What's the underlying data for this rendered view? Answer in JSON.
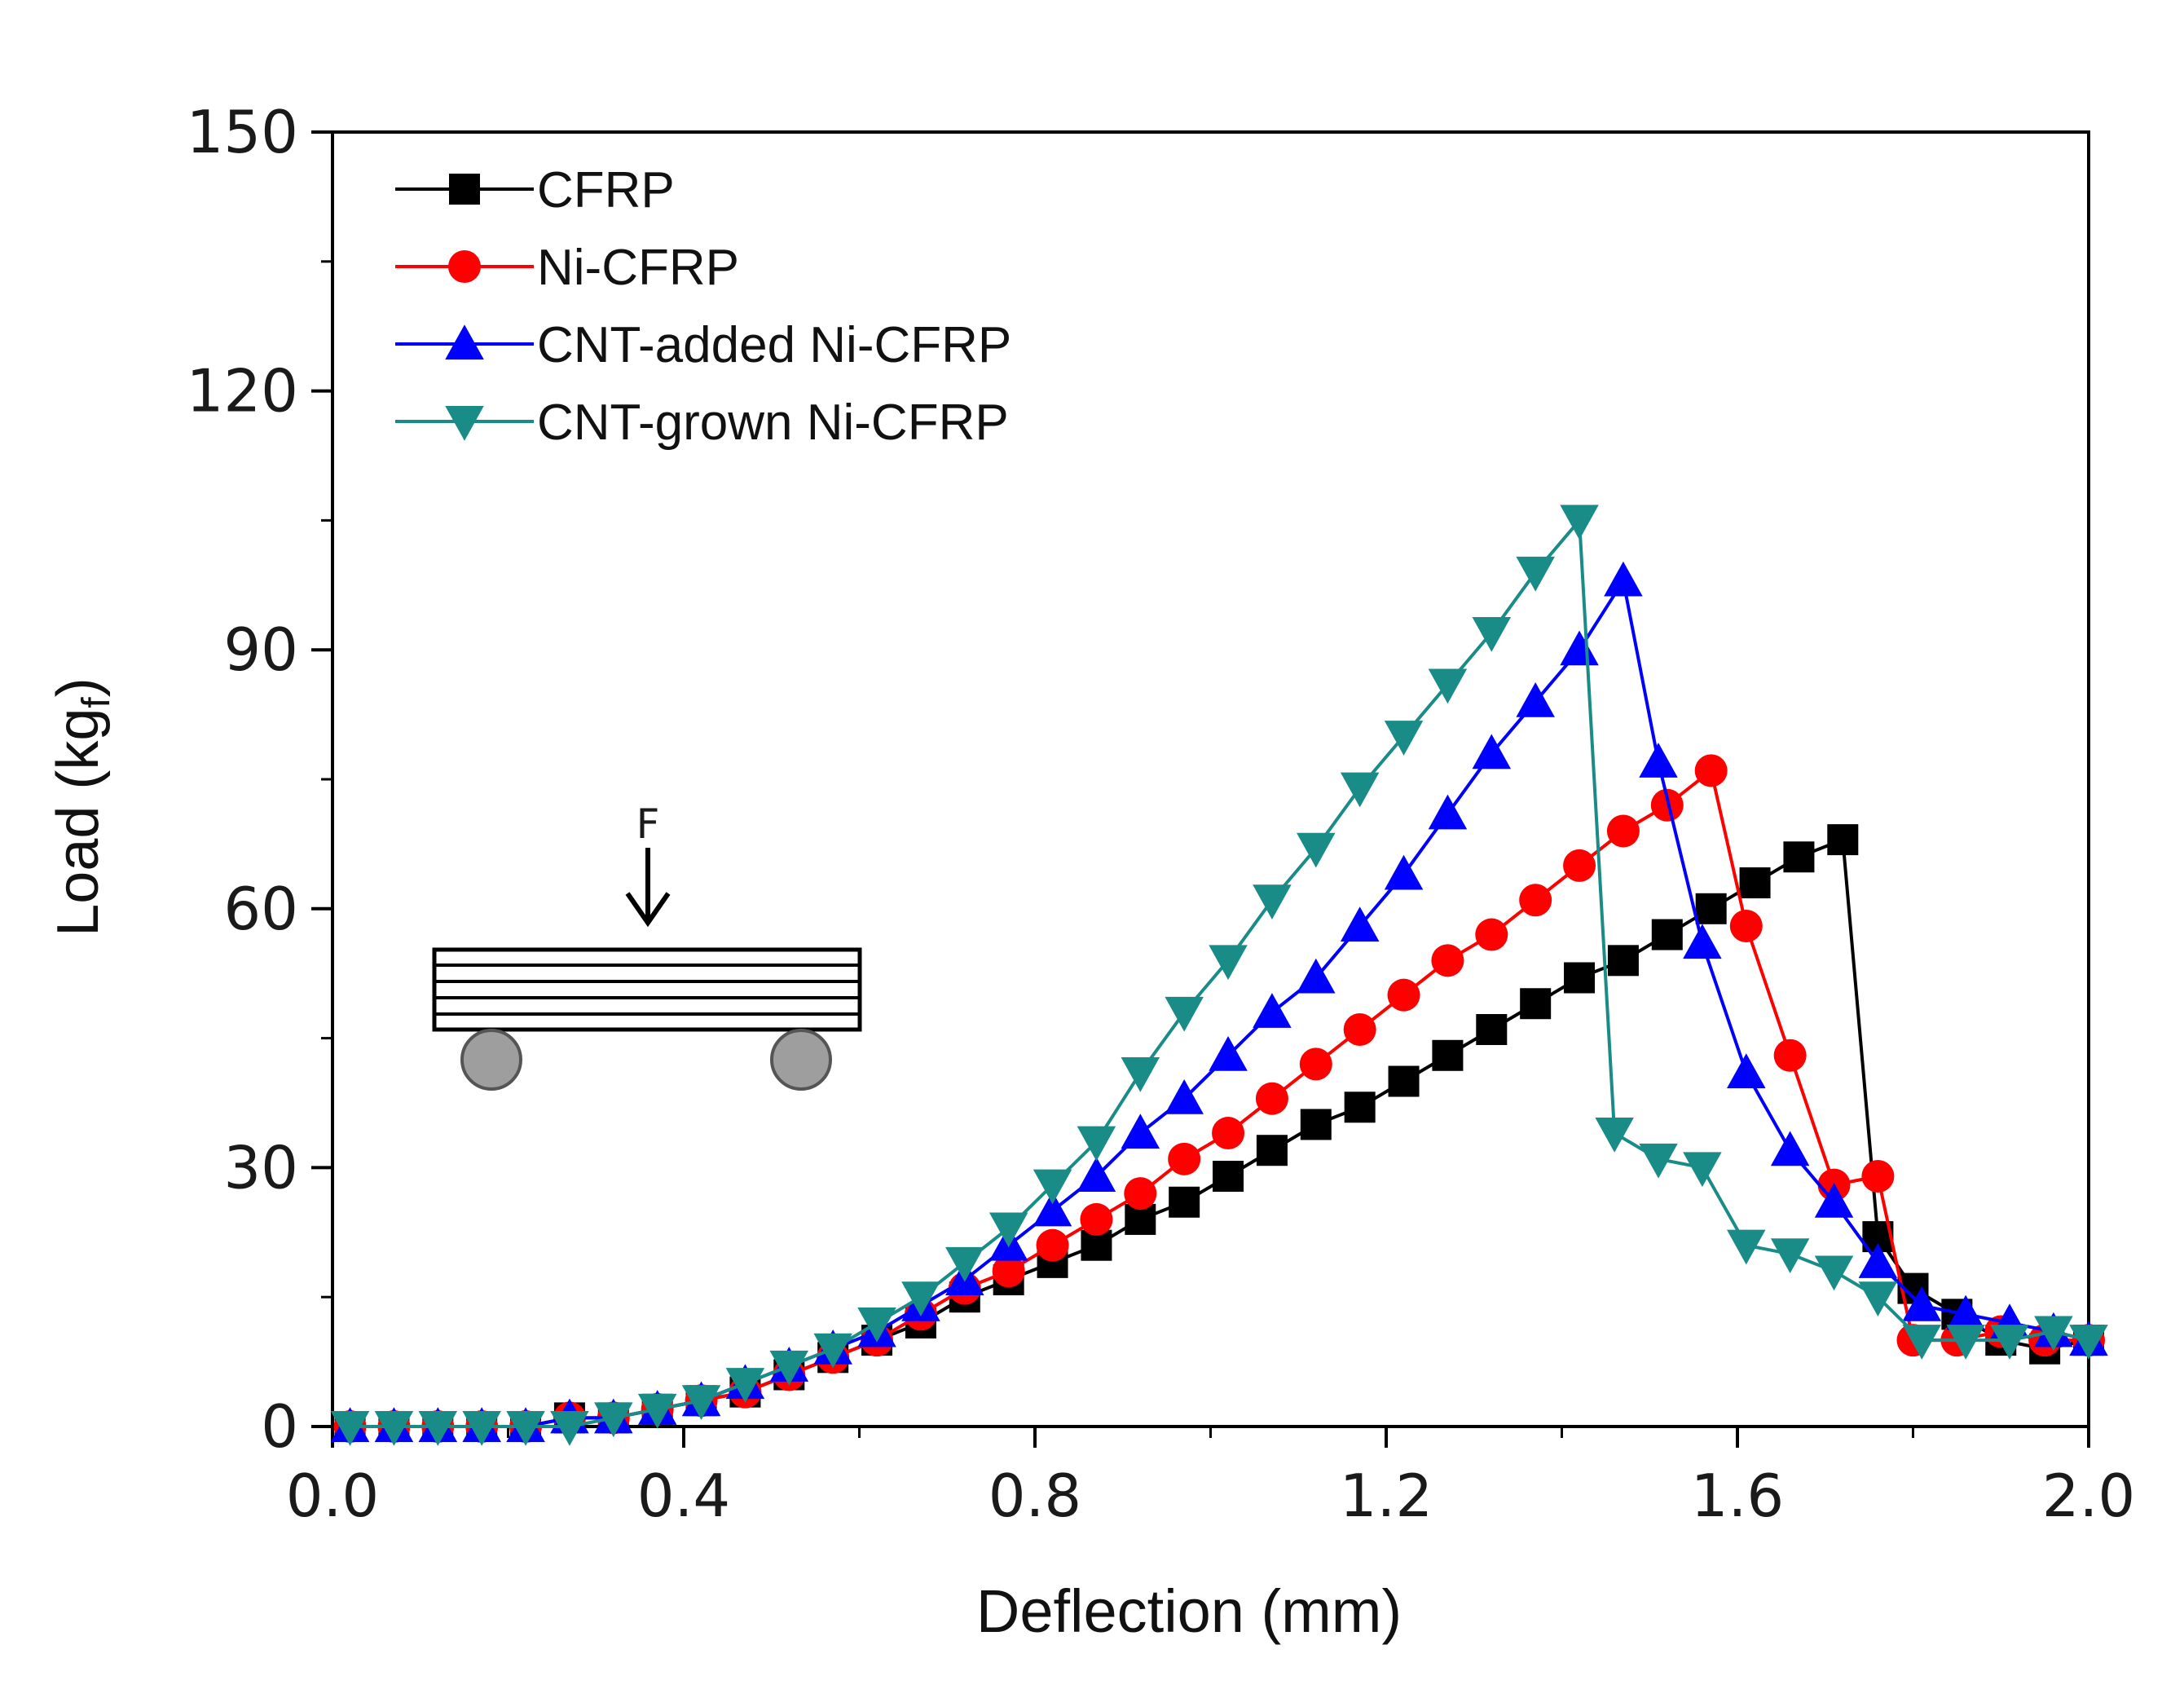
{
  "chart_data": {
    "type": "line",
    "title": "",
    "xlabel": "Deflection (mm)",
    "ylabel": "Load (kg",
    "ylabel_sub": "f",
    "ylabel_close": ")",
    "xlim": [
      0.0,
      2.0
    ],
    "ylim": [
      0,
      150
    ],
    "x_ticks": [
      "0.0",
      "0.4",
      "0.8",
      "1.2",
      "1.6",
      "2.0"
    ],
    "y_ticks": [
      "0",
      "30",
      "60",
      "90",
      "120",
      "150"
    ],
    "grid": false,
    "legend_position": "top-left",
    "series": [
      {
        "name": "CFRP",
        "color": "#000000",
        "marker": "square",
        "x": [
          0.02,
          0.07,
          0.12,
          0.17,
          0.22,
          0.27,
          0.32,
          0.37,
          0.42,
          0.47,
          0.52,
          0.57,
          0.62,
          0.67,
          0.72,
          0.77,
          0.82,
          0.87,
          0.92,
          0.97,
          1.02,
          1.07,
          1.12,
          1.17,
          1.22,
          1.27,
          1.32,
          1.37,
          1.42,
          1.47,
          1.52,
          1.57,
          1.62,
          1.67,
          1.72,
          1.76,
          1.8,
          1.85,
          1.9,
          1.95,
          2.0
        ],
        "y": [
          0,
          0,
          0,
          0,
          0,
          1,
          1,
          2,
          3,
          4,
          6,
          8,
          10,
          12,
          15,
          17,
          19,
          21,
          24,
          26,
          29,
          32,
          35,
          37,
          40,
          43,
          46,
          49,
          52,
          54,
          57,
          60,
          63,
          66,
          68,
          22,
          16,
          13,
          10,
          9,
          10
        ]
      },
      {
        "name": "Ni-CFRP",
        "color": "#ff0000",
        "marker": "circle",
        "x": [
          0.02,
          0.07,
          0.12,
          0.17,
          0.22,
          0.27,
          0.32,
          0.37,
          0.42,
          0.47,
          0.52,
          0.57,
          0.62,
          0.67,
          0.72,
          0.77,
          0.82,
          0.87,
          0.92,
          0.97,
          1.02,
          1.07,
          1.12,
          1.17,
          1.22,
          1.27,
          1.32,
          1.37,
          1.42,
          1.47,
          1.52,
          1.57,
          1.61,
          1.66,
          1.71,
          1.76,
          1.8,
          1.85,
          1.9,
          1.95,
          2.0
        ],
        "y": [
          0,
          0,
          0,
          0,
          0,
          1,
          1,
          2,
          3,
          4,
          6,
          8,
          10,
          13,
          16,
          18,
          21,
          24,
          27,
          31,
          34,
          38,
          42,
          46,
          50,
          54,
          57,
          61,
          65,
          69,
          72,
          76,
          58,
          43,
          28,
          29,
          10,
          10,
          11,
          10,
          10
        ]
      },
      {
        "name": "CNT-added Ni-CFRP",
        "color": "#0000ff",
        "marker": "triangle-up",
        "x": [
          0.02,
          0.07,
          0.12,
          0.17,
          0.22,
          0.27,
          0.32,
          0.37,
          0.42,
          0.47,
          0.52,
          0.57,
          0.62,
          0.67,
          0.72,
          0.77,
          0.82,
          0.87,
          0.92,
          0.97,
          1.02,
          1.07,
          1.12,
          1.17,
          1.22,
          1.27,
          1.32,
          1.37,
          1.42,
          1.47,
          1.51,
          1.56,
          1.61,
          1.66,
          1.71,
          1.76,
          1.81,
          1.86,
          1.91,
          1.96,
          2.0
        ],
        "y": [
          0,
          0,
          0,
          0,
          0,
          1,
          1,
          2,
          3,
          5,
          7,
          9,
          11,
          14,
          17,
          21,
          25,
          29,
          34,
          38,
          43,
          48,
          52,
          58,
          64,
          71,
          78,
          84,
          90,
          98,
          77,
          56,
          41,
          32,
          26,
          19,
          14,
          13,
          12,
          11,
          10
        ]
      },
      {
        "name": "CNT-grown Ni-CFRP",
        "color": "#1a8c88",
        "marker": "triangle-down",
        "x": [
          0.02,
          0.07,
          0.12,
          0.17,
          0.22,
          0.27,
          0.32,
          0.37,
          0.42,
          0.47,
          0.52,
          0.57,
          0.62,
          0.67,
          0.72,
          0.77,
          0.82,
          0.87,
          0.92,
          0.97,
          1.02,
          1.07,
          1.12,
          1.17,
          1.22,
          1.27,
          1.32,
          1.37,
          1.42,
          1.46,
          1.51,
          1.56,
          1.61,
          1.66,
          1.71,
          1.76,
          1.81,
          1.86,
          1.91,
          1.96,
          2.0
        ],
        "y": [
          0,
          0,
          0,
          0,
          0,
          0,
          1,
          2,
          3,
          5,
          7,
          9,
          12,
          15,
          19,
          23,
          28,
          33,
          41,
          48,
          54,
          61,
          67,
          74,
          80,
          86,
          92,
          99,
          105,
          34,
          31,
          30,
          21,
          20,
          18,
          15,
          10,
          10,
          10,
          11,
          10
        ]
      }
    ],
    "inset": {
      "description_label": "F"
    }
  }
}
